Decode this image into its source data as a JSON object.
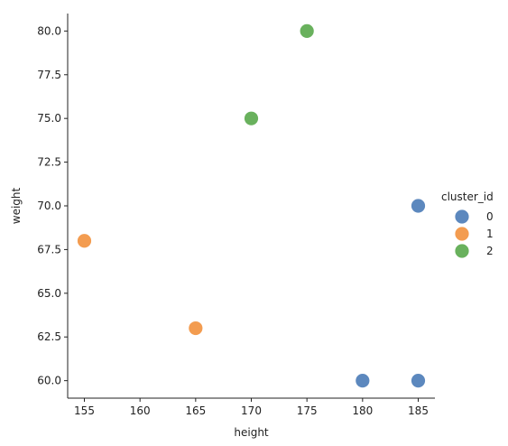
{
  "chart_data": {
    "type": "scatter",
    "xlabel": "height",
    "ylabel": "weight",
    "xlim": [
      153.5,
      186.5
    ],
    "ylim": [
      59.0,
      81.0
    ],
    "xticks": [
      155,
      160,
      165,
      170,
      175,
      180,
      185
    ],
    "yticks": [
      60.0,
      62.5,
      65.0,
      67.5,
      70.0,
      72.5,
      75.0,
      77.5,
      80.0
    ],
    "grid": false,
    "legend": {
      "title": "cluster_id",
      "placement": "right",
      "entries": [
        "0",
        "1",
        "2"
      ]
    },
    "series": [
      {
        "name": "0",
        "color": "#4a7bb7",
        "points": [
          [
            185,
            70
          ],
          [
            180,
            60
          ],
          [
            185,
            60
          ]
        ]
      },
      {
        "name": "1",
        "color": "#f2913d",
        "points": [
          [
            155,
            68
          ],
          [
            165,
            63
          ]
        ]
      },
      {
        "name": "2",
        "color": "#59a84b",
        "points": [
          [
            175,
            80
          ],
          [
            170,
            75
          ]
        ]
      }
    ]
  }
}
